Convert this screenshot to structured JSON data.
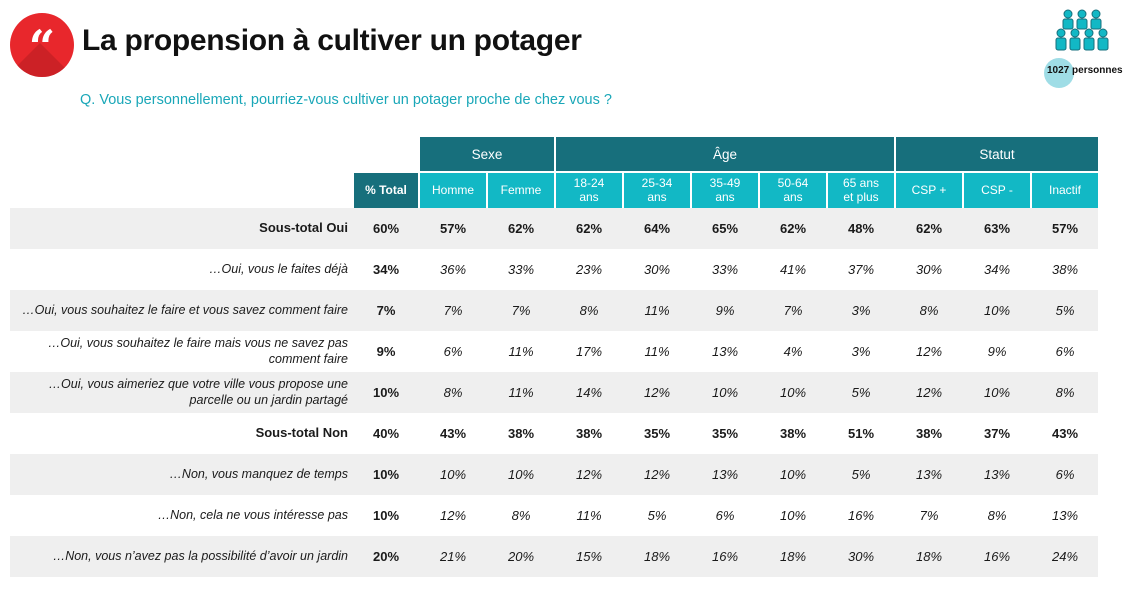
{
  "header": {
    "quote_glyph": "“",
    "title": "La propension à cultiver un potager",
    "question": "Q. Vous personnellement, pourriez-vous cultiver un potager proche de chez vous ?",
    "sample_count": "1027",
    "sample_unit": "personnes",
    "icon": "people-group-icon"
  },
  "colors": {
    "dark_teal": "#176f7c",
    "light_teal": "#12b8c5",
    "accent_red": "#e8272c",
    "question_teal": "#1aa7b8"
  },
  "table": {
    "groups": [
      "Sexe",
      "Âge",
      "Statut"
    ],
    "columns": [
      "% Total",
      "Homme",
      "Femme",
      "18-24\nans",
      "25-34\nans",
      "35-49\nans",
      "50-64\nans",
      "65 ans\net plus",
      "CSP +",
      "CSP -",
      "Inactif"
    ],
    "rows": [
      {
        "label": "Sous-total Oui",
        "values": [
          "60%",
          "57%",
          "62%",
          "62%",
          "64%",
          "65%",
          "62%",
          "48%",
          "62%",
          "63%",
          "57%"
        ]
      },
      {
        "label": "…Oui, vous le faites déjà",
        "values": [
          "34%",
          "36%",
          "33%",
          "23%",
          "30%",
          "33%",
          "41%",
          "37%",
          "30%",
          "34%",
          "38%"
        ]
      },
      {
        "label": "…Oui, vous souhaitez le faire et vous savez comment faire",
        "values": [
          "7%",
          "7%",
          "7%",
          "8%",
          "11%",
          "9%",
          "7%",
          "3%",
          "8%",
          "10%",
          "5%"
        ]
      },
      {
        "label": "…Oui, vous souhaitez le faire mais vous ne savez pas\ncomment faire",
        "values": [
          "9%",
          "6%",
          "11%",
          "17%",
          "11%",
          "13%",
          "4%",
          "3%",
          "12%",
          "9%",
          "6%"
        ]
      },
      {
        "label": "…Oui, vous aimeriez que votre ville vous propose une\nparcelle ou un jardin partagé",
        "values": [
          "10%",
          "8%",
          "11%",
          "14%",
          "12%",
          "10%",
          "10%",
          "5%",
          "12%",
          "10%",
          "8%"
        ]
      },
      {
        "label": "Sous-total Non",
        "values": [
          "40%",
          "43%",
          "38%",
          "38%",
          "35%",
          "35%",
          "38%",
          "51%",
          "38%",
          "37%",
          "43%"
        ]
      },
      {
        "label": "…Non, vous manquez de temps",
        "values": [
          "10%",
          "10%",
          "10%",
          "12%",
          "12%",
          "13%",
          "10%",
          "5%",
          "13%",
          "13%",
          "6%"
        ]
      },
      {
        "label": "…Non, cela ne vous intéresse pas",
        "values": [
          "10%",
          "12%",
          "8%",
          "11%",
          "5%",
          "6%",
          "10%",
          "16%",
          "7%",
          "8%",
          "13%"
        ]
      },
      {
        "label": "…Non, vous n’avez pas la possibilité d’avoir un jardin",
        "values": [
          "20%",
          "21%",
          "20%",
          "15%",
          "18%",
          "16%",
          "18%",
          "30%",
          "18%",
          "16%",
          "24%"
        ]
      }
    ]
  }
}
